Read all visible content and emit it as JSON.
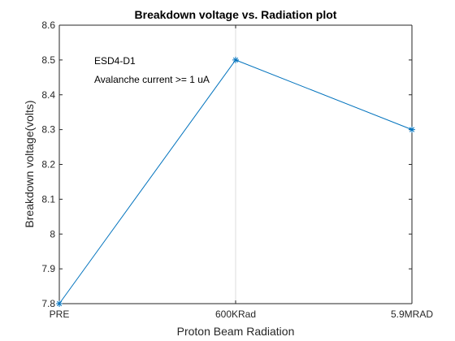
{
  "chart_data": {
    "type": "line",
    "title": "Breakdown voltage vs. Radiation plot",
    "xlabel": "Proton Beam Radiation",
    "ylabel": "Breakdown voltage(volts)",
    "categories": [
      "PRE",
      "600KRad",
      "5.9MRAD"
    ],
    "ylim": [
      7.8,
      8.6
    ],
    "yticks": [
      "7.8",
      "7.9",
      "8",
      "8.1",
      "8.2",
      "8.3",
      "8.4",
      "8.5",
      "8.6"
    ],
    "series": [
      {
        "values": [
          7.8,
          8.5,
          8.3
        ],
        "color": "#0072bd",
        "marker": "asterisk"
      }
    ],
    "annotations": [
      "ESD4-D1",
      "Avalanche current >= 1 uA"
    ],
    "grid": "x-only",
    "legend": "none"
  }
}
